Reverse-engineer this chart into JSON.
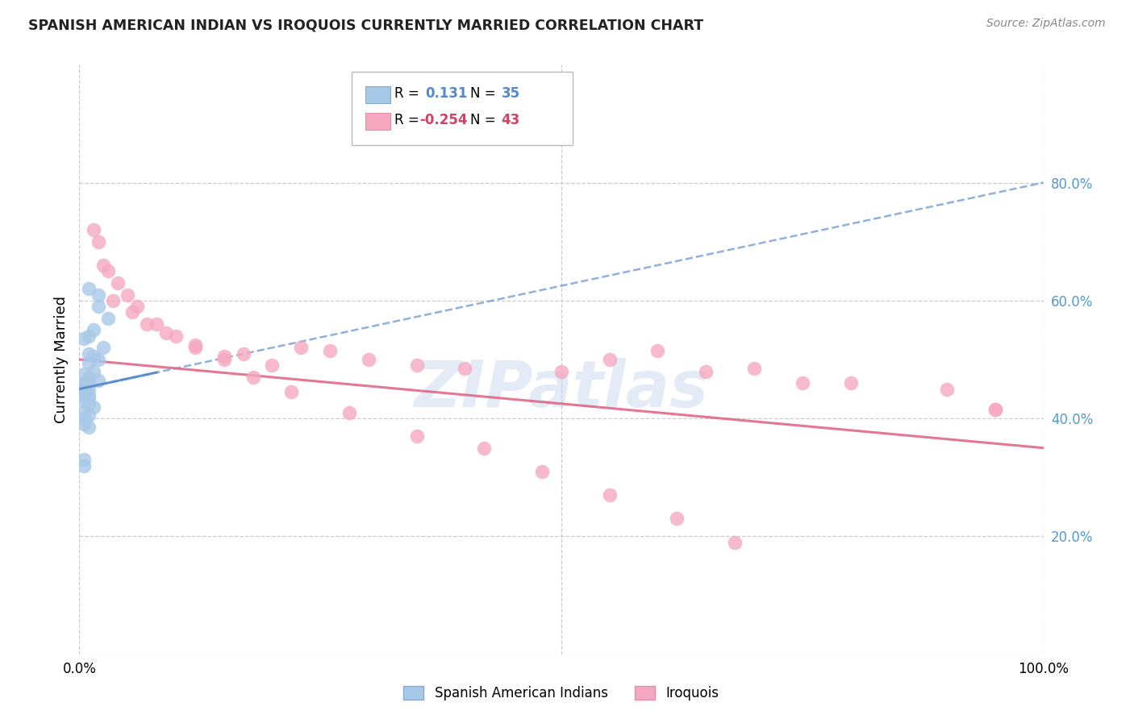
{
  "title": "SPANISH AMERICAN INDIAN VS IROQUOIS CURRENTLY MARRIED CORRELATION CHART",
  "source": "Source: ZipAtlas.com",
  "ylabel": "Currently Married",
  "watermark": "ZIPatlas",
  "blue_R": 0.131,
  "blue_N": 35,
  "pink_R": -0.254,
  "pink_N": 43,
  "blue_x": [
    1.0,
    2.0,
    2.0,
    3.0,
    1.5,
    1.0,
    0.5,
    2.5,
    1.0,
    1.5,
    2.0,
    1.0,
    1.5,
    0.5,
    1.0,
    2.0,
    0.5,
    1.0,
    0.5,
    1.0,
    0.5,
    0.5,
    1.0,
    0.5,
    1.0,
    0.5,
    1.0,
    1.5,
    0.5,
    1.0,
    0.5,
    0.5,
    1.0,
    0.5,
    0.5
  ],
  "blue_y": [
    62.0,
    61.0,
    59.0,
    57.0,
    55.0,
    54.0,
    53.5,
    52.0,
    51.0,
    50.5,
    50.0,
    49.5,
    48.0,
    47.5,
    47.0,
    46.5,
    46.0,
    46.0,
    45.5,
    45.0,
    45.0,
    44.5,
    44.0,
    44.0,
    43.5,
    43.0,
    42.5,
    42.0,
    41.0,
    40.5,
    40.0,
    39.0,
    38.5,
    33.0,
    32.0
  ],
  "pink_x": [
    1.5,
    2.0,
    3.0,
    4.0,
    5.0,
    6.0,
    8.0,
    10.0,
    12.0,
    15.0,
    17.0,
    20.0,
    23.0,
    26.0,
    30.0,
    35.0,
    40.0,
    50.0,
    55.0,
    60.0,
    65.0,
    70.0,
    75.0,
    80.0,
    90.0,
    95.0,
    2.5,
    3.5,
    5.5,
    7.0,
    9.0,
    12.0,
    15.0,
    18.0,
    22.0,
    28.0,
    35.0,
    42.0,
    48.0,
    55.0,
    62.0,
    68.0,
    95.0
  ],
  "pink_y": [
    72.0,
    70.0,
    65.0,
    63.0,
    61.0,
    59.0,
    56.0,
    54.0,
    52.0,
    50.0,
    51.0,
    49.0,
    52.0,
    51.5,
    50.0,
    49.0,
    48.5,
    48.0,
    50.0,
    51.5,
    48.0,
    48.5,
    46.0,
    46.0,
    45.0,
    41.5,
    66.0,
    60.0,
    58.0,
    56.0,
    54.5,
    52.5,
    50.5,
    47.0,
    44.5,
    41.0,
    37.0,
    35.0,
    31.0,
    27.0,
    23.0,
    19.0,
    41.5
  ],
  "xlim": [
    0,
    100
  ],
  "ylim": [
    0,
    100
  ],
  "ytick_values": [
    0,
    20,
    40,
    60,
    80
  ],
  "ytick_labels": [
    "",
    "20.0%",
    "40.0%",
    "60.0%",
    "80.0%"
  ],
  "xtick_values": [
    0,
    100
  ],
  "xtick_labels": [
    "0.0%",
    "100.0%"
  ],
  "blue_scatter_color": "#a8c8e8",
  "blue_line_color": "#5588cc",
  "pink_scatter_color": "#f5a8c0",
  "pink_line_color": "#e06888",
  "grid_color": "#cccccc",
  "bg_color": "#ffffff",
  "right_tick_color": "#5599cc",
  "blue_trendline_start_x": 0,
  "blue_trendline_start_y": 45.0,
  "blue_trendline_end_x": 100,
  "blue_trendline_end_y": 80.0,
  "pink_trendline_start_x": 0,
  "pink_trendline_start_y": 50.0,
  "pink_trendline_end_x": 100,
  "pink_trendline_end_y": 35.0
}
